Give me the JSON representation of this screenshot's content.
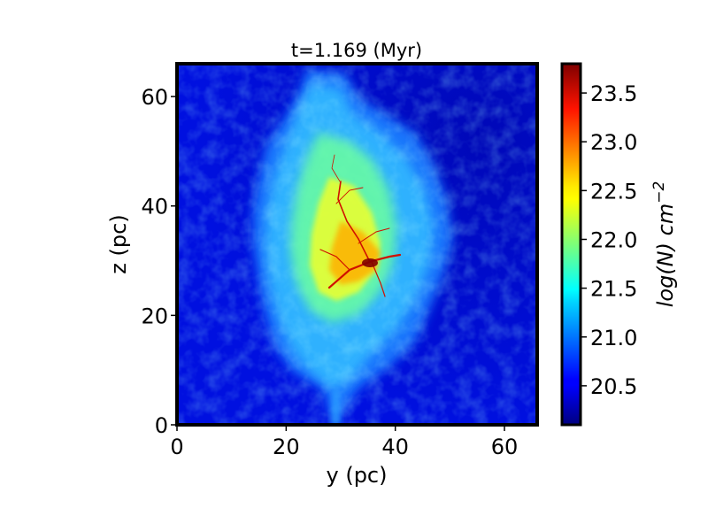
{
  "chart_data": {
    "type": "heatmap",
    "title": "t=1.169 (Myr)",
    "xlabel": "y (pc)",
    "ylabel": "z (pc)",
    "xlim": [
      0,
      66
    ],
    "ylim": [
      0,
      66
    ],
    "x_ticks": [
      0,
      20,
      40,
      60
    ],
    "y_ticks": [
      0,
      20,
      40,
      60
    ],
    "colormap": "jet",
    "colorbar": {
      "label_main": "log(N) cm",
      "label_sup": "−2",
      "range": [
        20.1,
        23.8
      ],
      "ticks": [
        "20.5",
        "21.0",
        "21.5",
        "22.0",
        "22.5",
        "23.0",
        "23.5"
      ],
      "tick_values": [
        20.5,
        21.0,
        21.5,
        22.0,
        22.5,
        23.0,
        23.5
      ]
    },
    "background_level": 20.7,
    "cloud": {
      "center": [
        33,
        36
      ],
      "extent_y": [
        14,
        51
      ],
      "extent_z": [
        3,
        66
      ],
      "peak_level": 23.7,
      "peak_location": [
        35,
        29
      ],
      "envelope_level": 21.4,
      "core_level": 22.3
    },
    "grid": false,
    "legend": "none"
  }
}
